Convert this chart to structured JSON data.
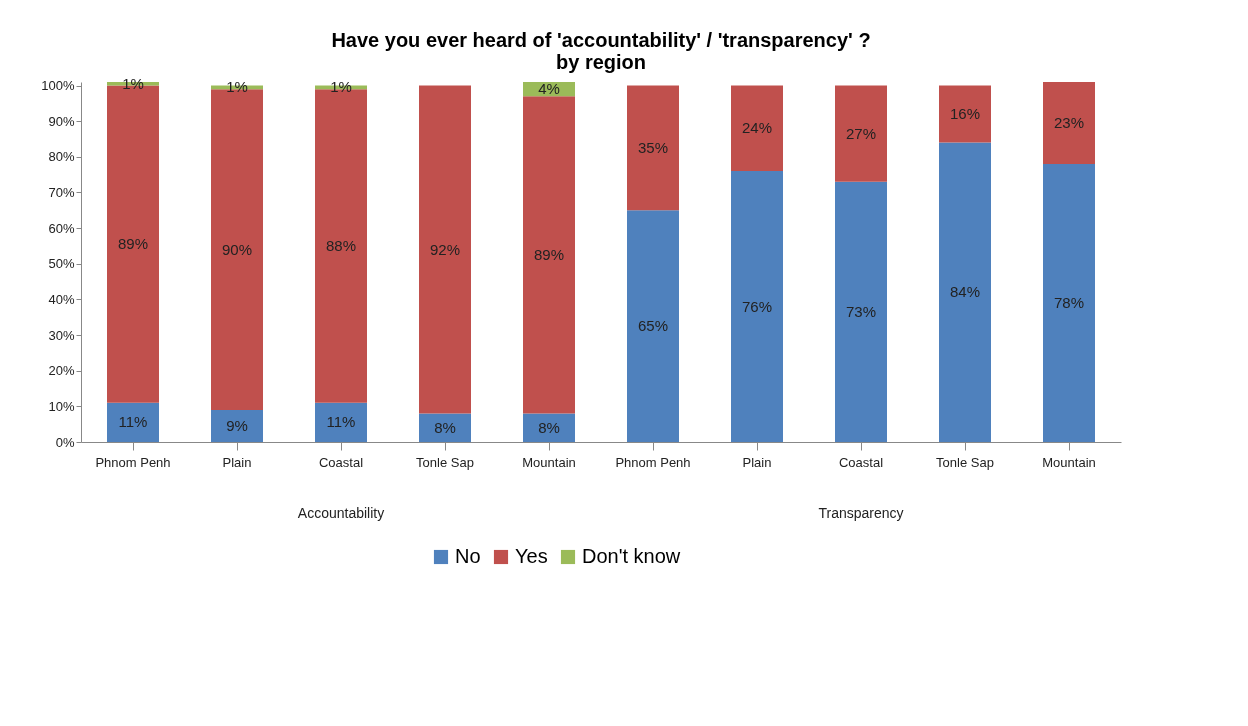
{
  "chart_data": {
    "type": "bar",
    "stacked": true,
    "title": "Have you ever heard of 'accountability' / 'transparency' ?\nby region",
    "categories": [
      "Phnom Penh",
      "Plain",
      "Coastal",
      "Tonle Sap",
      "Mountain",
      "Phnom Penh",
      "Plain",
      "Coastal",
      "Tonle Sap",
      "Mountain"
    ],
    "series": [
      {
        "name": "No",
        "color": "#4f81bd",
        "values": [
          11,
          9,
          11,
          8,
          8,
          65,
          76,
          73,
          84,
          78
        ],
        "value_labels": [
          "11%",
          "9%",
          "11%",
          "8%",
          "8%",
          "65%",
          "76%",
          "73%",
          "84%",
          "78%"
        ]
      },
      {
        "name": "Yes",
        "color": "#c0504d",
        "values": [
          89,
          90,
          88,
          92,
          89,
          35,
          24,
          27,
          16,
          23
        ],
        "value_labels": [
          "89%",
          "90%",
          "88%",
          "92%",
          "89%",
          "35%",
          "24%",
          "27%",
          "16%",
          "23%"
        ]
      },
      {
        "name": "Don't know",
        "color": "#9bbb59",
        "values": [
          1,
          1,
          1,
          null,
          4,
          null,
          null,
          null,
          null,
          null
        ],
        "value_labels": [
          "1%",
          "1%",
          "1%",
          null,
          "4%",
          null,
          null,
          null,
          null,
          null
        ]
      }
    ],
    "annotations": [
      "Accountability",
      "Transparency"
    ],
    "ylim": [
      0,
      101
    ],
    "yticks": [
      {
        "value": 0,
        "label": "0%"
      },
      {
        "value": 10,
        "label": "10%"
      },
      {
        "value": 20,
        "label": "20%"
      },
      {
        "value": 30,
        "label": "30%"
      },
      {
        "value": 40,
        "label": "40%"
      },
      {
        "value": 50,
        "label": "50%"
      },
      {
        "value": 60,
        "label": "60%"
      },
      {
        "value": 70,
        "label": "70%"
      },
      {
        "value": 80,
        "label": "80%"
      },
      {
        "value": 90,
        "label": "90%"
      },
      {
        "value": 100,
        "label": "100%"
      }
    ],
    "grid": false,
    "legend": "bottom"
  }
}
